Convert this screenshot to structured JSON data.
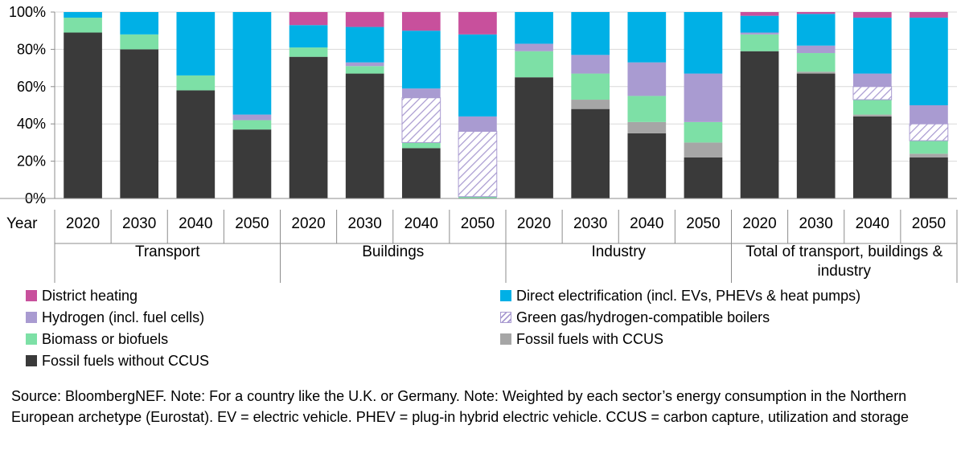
{
  "chart_data": {
    "type": "bar",
    "stacked": true,
    "title": "",
    "ylabel": "",
    "xlabel": "Year",
    "ylim": [
      0,
      100
    ],
    "yticks": [
      "0%",
      "20%",
      "40%",
      "60%",
      "80%",
      "100%"
    ],
    "groups": [
      {
        "name": "Transport",
        "years": [
          "2020",
          "2030",
          "2040",
          "2050"
        ]
      },
      {
        "name": "Buildings",
        "years": [
          "2020",
          "2030",
          "2040",
          "2050"
        ]
      },
      {
        "name": "Industry",
        "years": [
          "2020",
          "2030",
          "2040",
          "2050"
        ]
      },
      {
        "name": "Total of transport, buildings & industry",
        "years": [
          "2020",
          "2030",
          "2040",
          "2050"
        ]
      }
    ],
    "series": [
      {
        "name": "Fossil fuels without CCUS",
        "color": "#3a3a3a",
        "pattern": "solid",
        "values": [
          89,
          80,
          58,
          37,
          76,
          67,
          27,
          0,
          65,
          48,
          35,
          22,
          79,
          67,
          44,
          22
        ]
      },
      {
        "name": "Fossil fuels with CCUS",
        "color": "#a6a6a6",
        "pattern": "solid",
        "values": [
          0,
          0,
          0,
          0,
          0,
          0,
          0,
          0,
          0,
          5,
          6,
          8,
          0,
          1,
          1,
          2
        ]
      },
      {
        "name": "Biomass or biofuels",
        "color": "#7de0a6",
        "pattern": "solid",
        "values": [
          8,
          8,
          8,
          5,
          5,
          4,
          3,
          1,
          14,
          14,
          14,
          11,
          9,
          10,
          8,
          7
        ]
      },
      {
        "name": "Green gas/hydrogen-compatible boilers",
        "color": "#a99bd1",
        "pattern": "hatch",
        "values": [
          0,
          0,
          0,
          0,
          0,
          0,
          24,
          35,
          0,
          0,
          0,
          0,
          0,
          0,
          7,
          9
        ]
      },
      {
        "name": "Hydrogen (incl. fuel cells)",
        "color": "#a99bd1",
        "pattern": "solid",
        "values": [
          0,
          0,
          0,
          3,
          0,
          2,
          5,
          8,
          4,
          10,
          18,
          26,
          1,
          4,
          7,
          10
        ]
      },
      {
        "name": "Direct electrification (incl. EVs, PHEVs & heat pumps)",
        "color": "#00b0e6",
        "pattern": "solid",
        "values": [
          3,
          12,
          34,
          55,
          12,
          19,
          31,
          44,
          17,
          23,
          27,
          33,
          9,
          17,
          30,
          47
        ]
      },
      {
        "name": "District heating",
        "color": "#c8509c",
        "pattern": "solid",
        "values": [
          0,
          0,
          0,
          0,
          7,
          8,
          10,
          12,
          0,
          0,
          0,
          0,
          2,
          1,
          3,
          3
        ]
      }
    ]
  },
  "legend": [
    "District heating",
    "Direct electrification (incl. EVs, PHEVs & heat pumps)",
    "Hydrogen (incl. fuel cells)",
    "Green gas/hydrogen-compatible boilers",
    "Biomass or biofuels",
    "Fossil fuels with CCUS",
    "Fossil fuels without CCUS"
  ],
  "source_note": "Source: BloombergNEF. Note: For a country like the U.K. or Germany. Note: Weighted by each sector’s energy consumption in the Northern European archetype (Eurostat). EV = electric vehicle. PHEV = plug-in hybrid electric vehicle. CCUS = carbon capture, utilization and storage"
}
